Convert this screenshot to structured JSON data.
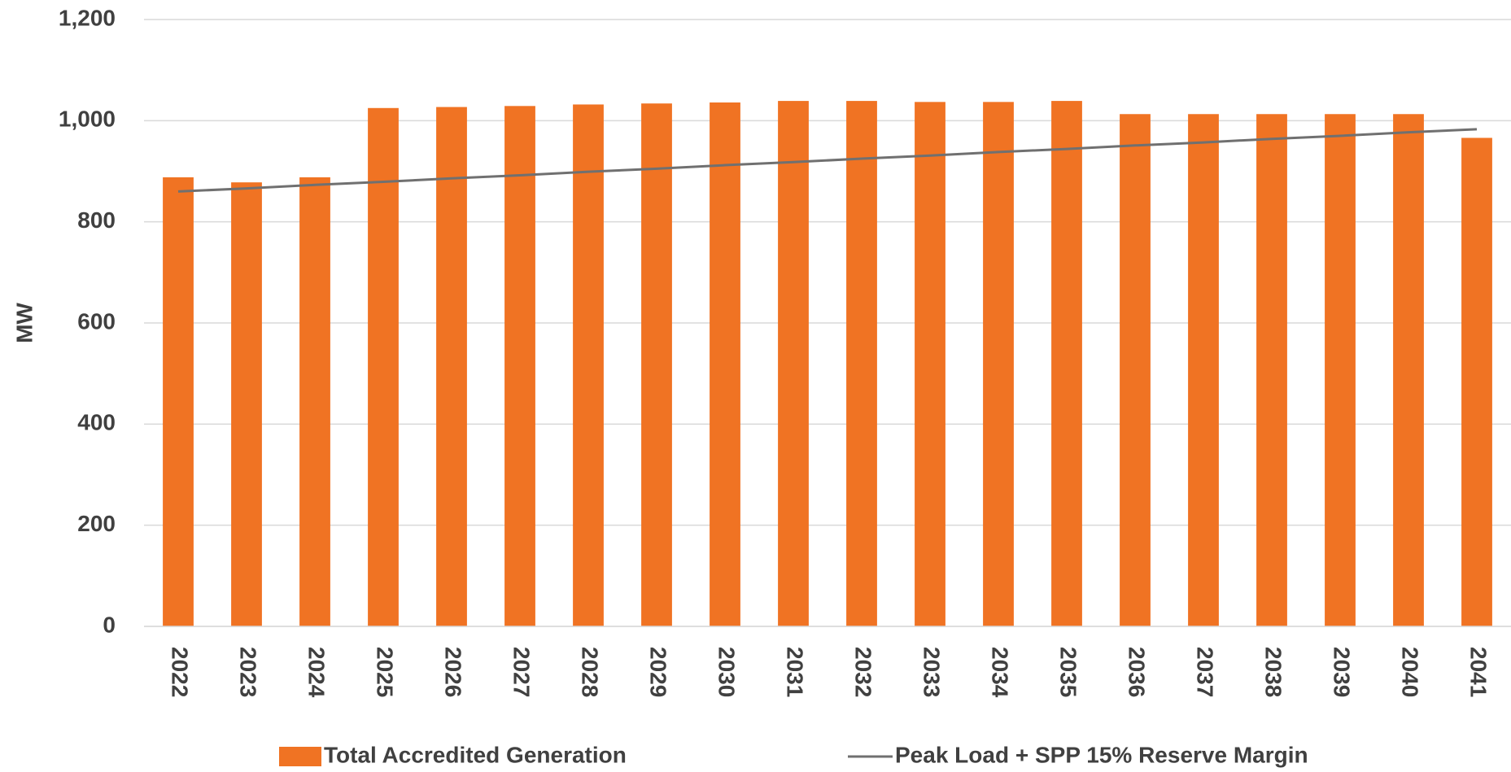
{
  "chart_data": {
    "type": "bar",
    "y_label": "MW",
    "categories": [
      "2022",
      "2023",
      "2024",
      "2025",
      "2026",
      "2027",
      "2028",
      "2029",
      "2030",
      "2031",
      "2032",
      "2033",
      "2034",
      "2035",
      "2036",
      "2037",
      "2038",
      "2039",
      "2040",
      "2041"
    ],
    "series": [
      {
        "name": "Total Accredited Generation",
        "type": "bar",
        "color": "#f07323",
        "values": [
          888,
          878,
          888,
          1025,
          1027,
          1029,
          1032,
          1034,
          1036,
          1039,
          1039,
          1037,
          1037,
          1039,
          1013,
          1013,
          1013,
          1013,
          1013,
          966
        ]
      },
      {
        "name": "Peak Load + SPP 15% Reserve Margin",
        "type": "line",
        "color": "#707070",
        "values": [
          860,
          866,
          873,
          879,
          886,
          892,
          899,
          905,
          912,
          918,
          925,
          931,
          938,
          944,
          951,
          957,
          964,
          970,
          977,
          983
        ]
      }
    ],
    "ylim": [
      0,
      1200
    ],
    "yticks": [
      0,
      200,
      400,
      600,
      800,
      {
        "value": 1000,
        "label": "1,000"
      },
      {
        "value": 1200,
        "label": "1,200"
      }
    ],
    "grid": true,
    "legend": "bottom"
  }
}
